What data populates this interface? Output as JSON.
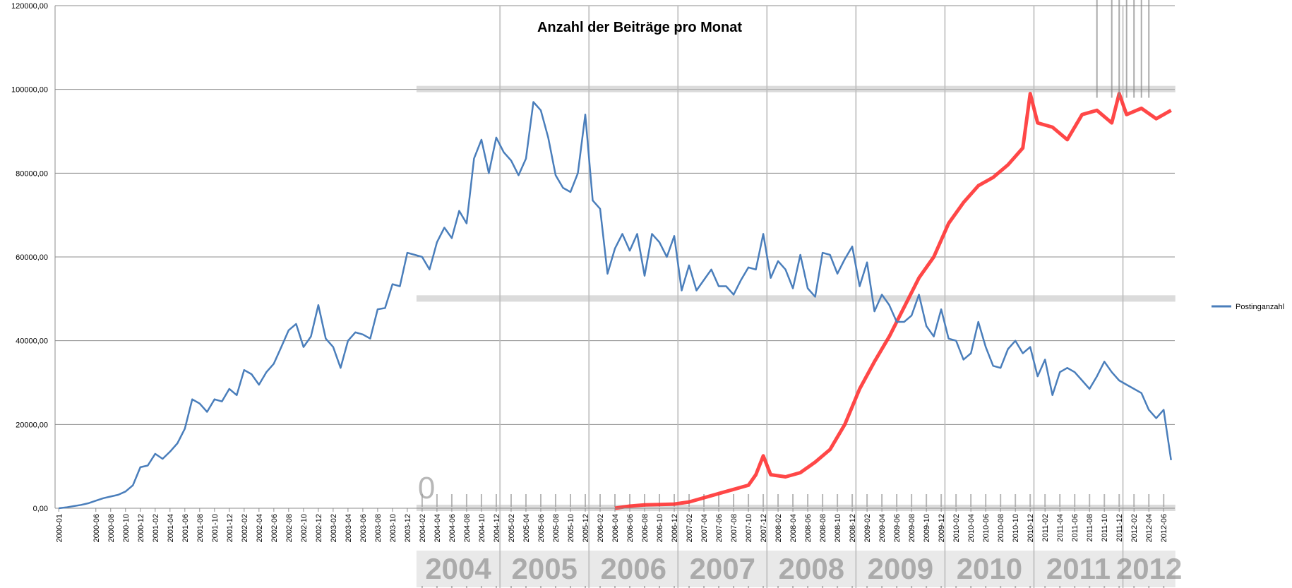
{
  "chart_data": {
    "type": "line",
    "title": "Anzahl der Beiträge pro Monat",
    "xlabel": "",
    "ylabel": "",
    "ylim": [
      0,
      120000
    ],
    "y_ticks": [
      "0,00",
      "20000,00",
      "40000,00",
      "60000,00",
      "80000,00",
      "100000,00",
      "120000,00"
    ],
    "y_tick_values": [
      0,
      20000,
      40000,
      60000,
      80000,
      100000,
      120000
    ],
    "grid": true,
    "legend_position": "right",
    "x": [
      "2000-01",
      "2000-02",
      "2000-03",
      "2000-04",
      "2000-05",
      "2000-06",
      "2000-07",
      "2000-08",
      "2000-09",
      "2000-10",
      "2000-11",
      "2000-12",
      "2001-01",
      "2001-02",
      "2001-03",
      "2001-04",
      "2001-05",
      "2001-06",
      "2001-07",
      "2001-08",
      "2001-09",
      "2001-10",
      "2001-11",
      "2001-12",
      "2002-01",
      "2002-02",
      "2002-03",
      "2002-04",
      "2002-05",
      "2002-06",
      "2002-07",
      "2002-08",
      "2002-09",
      "2002-10",
      "2002-11",
      "2002-12",
      "2003-01",
      "2003-02",
      "2003-03",
      "2003-04",
      "2003-05",
      "2003-06",
      "2003-07",
      "2003-08",
      "2003-09",
      "2003-10",
      "2003-11",
      "2003-12",
      "2004-01",
      "2004-02",
      "2004-03",
      "2004-04",
      "2004-05",
      "2004-06",
      "2004-07",
      "2004-08",
      "2004-09",
      "2004-10",
      "2004-11",
      "2004-12",
      "2005-01",
      "2005-02",
      "2005-03",
      "2005-04",
      "2005-05",
      "2005-06",
      "2005-07",
      "2005-08",
      "2005-09",
      "2005-10",
      "2005-11",
      "2005-12",
      "2006-01",
      "2006-02",
      "2006-03",
      "2006-04",
      "2006-05",
      "2006-06",
      "2006-07",
      "2006-08",
      "2006-09",
      "2006-10",
      "2006-11",
      "2006-12",
      "2007-01",
      "2007-02",
      "2007-03",
      "2007-04",
      "2007-05",
      "2007-06",
      "2007-07",
      "2007-08",
      "2007-09",
      "2007-10",
      "2007-11",
      "2007-12",
      "2008-01",
      "2008-02",
      "2008-03",
      "2008-04",
      "2008-05",
      "2008-06",
      "2008-07",
      "2008-08",
      "2008-09",
      "2008-10",
      "2008-11",
      "2008-12",
      "2009-01",
      "2009-02",
      "2009-03",
      "2009-04",
      "2009-05",
      "2009-06",
      "2009-07",
      "2009-08",
      "2009-09",
      "2009-10",
      "2009-11",
      "2009-12",
      "2010-01",
      "2010-02",
      "2010-03",
      "2010-04",
      "2010-05",
      "2010-06",
      "2010-07",
      "2010-08",
      "2010-09",
      "2010-10",
      "2010-11",
      "2010-12",
      "2011-01",
      "2011-02",
      "2011-03",
      "2011-04",
      "2011-05",
      "2011-06",
      "2011-07",
      "2011-08",
      "2011-09",
      "2011-10",
      "2011-11",
      "2011-12",
      "2012-01",
      "2012-02",
      "2012-03",
      "2012-04",
      "2012-05",
      "2012-06",
      "2012-07"
    ],
    "x_tick_labels": [
      "2000-01",
      "2000-06",
      "2000-08",
      "2000-10",
      "2000-12",
      "2001-02",
      "2001-04",
      "2001-06",
      "2001-08",
      "2001-10",
      "2001-12",
      "2002-02",
      "2002-04",
      "2002-06",
      "2002-08",
      "2002-10",
      "2002-12",
      "2003-02",
      "2003-04",
      "2003-06",
      "2003-08",
      "2003-10",
      "2003-12",
      "2004-02",
      "2004-04",
      "2004-06",
      "2004-08",
      "2004-10",
      "2004-12",
      "2005-02",
      "2005-04",
      "2005-06",
      "2005-08",
      "2005-10",
      "2005-12",
      "2006-02",
      "2006-04",
      "2006-06",
      "2006-08",
      "2006-10",
      "2006-12",
      "2007-02",
      "2007-04",
      "2007-06",
      "2007-08",
      "2007-10",
      "2007-12",
      "2008-02",
      "2008-04",
      "2008-06",
      "2008-08",
      "2008-10",
      "2008-12",
      "2009-02",
      "2009-04",
      "2009-06",
      "2009-08",
      "2009-10",
      "2009-12",
      "2010-02",
      "2010-04",
      "2010-06",
      "2010-08",
      "2010-10",
      "2010-12",
      "2011-02",
      "2011-04",
      "2011-06",
      "2011-08",
      "2011-10",
      "2011-12",
      "2012-02",
      "2012-04",
      "2012-06"
    ],
    "series": [
      {
        "name": "Postinganzahl",
        "color": "#4a7ebb",
        "values": [
          0,
          200,
          500,
          800,
          1200,
          1800,
          2400,
          2800,
          3200,
          4000,
          5500,
          9800,
          10200,
          13000,
          11800,
          13500,
          15500,
          19000,
          26000,
          25000,
          23000,
          26000,
          25500,
          28500,
          27000,
          33000,
          32000,
          29500,
          32500,
          34500,
          38500,
          42500,
          44000,
          38500,
          41000,
          48500,
          40500,
          38500,
          33500,
          40000,
          42000,
          41500,
          40500,
          47500,
          47800,
          53500,
          53000,
          61000,
          60500,
          60000,
          57000,
          63500,
          67000,
          64500,
          71000,
          68000,
          83500,
          88000,
          80000,
          88500,
          85000,
          83000,
          79500,
          83500,
          97000,
          95000,
          88500,
          79500,
          76500,
          75500,
          80000,
          94000,
          73500,
          71500,
          56000,
          62000,
          65500,
          61500,
          65500,
          55500,
          65500,
          63500,
          60000,
          65000,
          52000,
          58000,
          52000,
          54500,
          57000,
          53000,
          53000,
          51000,
          54500,
          57500,
          57000,
          65500,
          55000,
          59000,
          57000,
          52500,
          60500,
          52500,
          50500,
          61000,
          60500,
          56000,
          59500,
          62500,
          53000,
          58700,
          47000,
          51000,
          48500,
          44500,
          44500,
          46000,
          51000,
          43500,
          41000,
          47500,
          40500,
          40000,
          35500,
          37000,
          44500,
          38500,
          34000,
          33500,
          38000,
          40000,
          37000,
          38500,
          31500,
          35500,
          27000,
          32500,
          33500,
          32500,
          30500,
          28500,
          31500,
          35000,
          32500,
          30500,
          29500,
          28500,
          27500,
          23500,
          21500,
          23500,
          11500
        ]
      }
    ],
    "overlay": {
      "color": "#ff3333",
      "year_labels": [
        "2004",
        "2005",
        "2006",
        "2007",
        "2008",
        "2009",
        "2010",
        "2011",
        "2012"
      ],
      "zero_label": "0",
      "x": [
        "2006-04",
        "2006-06",
        "2006-08",
        "2006-10",
        "2006-12",
        "2007-02",
        "2007-04",
        "2007-06",
        "2007-08",
        "2007-10",
        "2007-11",
        "2007-12",
        "2008-01",
        "2008-03",
        "2008-05",
        "2008-07",
        "2008-09",
        "2008-11",
        "2009-01",
        "2009-03",
        "2009-05",
        "2009-07",
        "2009-09",
        "2009-11",
        "2010-01",
        "2010-03",
        "2010-05",
        "2010-07",
        "2010-09",
        "2010-11",
        "2010-12",
        "2011-01",
        "2011-03",
        "2011-05",
        "2011-07",
        "2011-09",
        "2011-11",
        "2011-12",
        "2012-01",
        "2012-03",
        "2012-05",
        "2012-07"
      ],
      "values": [
        0,
        500,
        800,
        900,
        1000,
        1500,
        2500,
        3500,
        4500,
        5500,
        8000,
        12500,
        8000,
        7500,
        8500,
        11000,
        14000,
        20000,
        28500,
        35000,
        41000,
        48000,
        55000,
        60000,
        68000,
        73000,
        77000,
        79000,
        82000,
        86000,
        99000,
        92000,
        91000,
        88000,
        94000,
        95000,
        92000,
        99000,
        94000,
        95500,
        93000,
        95000
      ]
    }
  }
}
